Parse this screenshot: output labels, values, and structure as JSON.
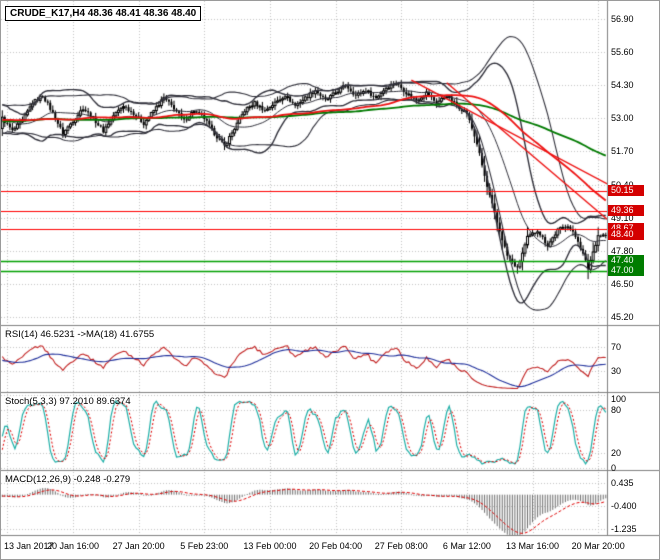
{
  "window": {
    "symbol_label": "CRUDE_K17,H4 48.36 48.41 48.36 48.40"
  },
  "colors": {
    "background": "#ffffff",
    "grid": "#c3c3c3",
    "border": "#808080",
    "candle": "#000000",
    "bollinger": "#32323c",
    "ma_green": "#007a00",
    "ma_red": "#ee1111",
    "trendline_red": "#ee1111",
    "hline_red": "#ff0000",
    "hline_green": "#00a000",
    "badge_red": "#d40000",
    "badge_green": "#007d00",
    "rsi_line": "#c22222",
    "rsi_ma": "#20309c",
    "stoch_k": "#1fb0a8",
    "stoch_d": "#e00000",
    "macd_hist": "#6e6e6e",
    "macd_signal": "#e00000"
  },
  "x_axis": {
    "labels": [
      {
        "i": 2,
        "t": "13 Jan 2017"
      },
      {
        "i": 28,
        "t": "20 Jan 16:00"
      },
      {
        "i": 54,
        "t": "27 Jan 20:00"
      },
      {
        "i": 80,
        "t": "5 Feb 23:00"
      },
      {
        "i": 106,
        "t": "13 Feb 00:00"
      },
      {
        "i": 132,
        "t": "20 Feb 04:00"
      },
      {
        "i": 158,
        "t": "27 Feb 08:00"
      },
      {
        "i": 184,
        "t": "6 Mar 12:00"
      },
      {
        "i": 210,
        "t": "13 Mar 16:00"
      },
      {
        "i": 236,
        "t": "20 Mar 20:00"
      }
    ]
  },
  "chart_data": [
    {
      "type": "candlestick",
      "title": "CRUDE_K17,H4",
      "x_candles": 240,
      "upsample": 4,
      "last_close": 48.4,
      "close_samples": [
        53.0,
        52.5,
        52.9,
        53.6,
        53.9,
        53.2,
        52.4,
        52.9,
        53.4,
        53.0,
        52.5,
        53.1,
        53.5,
        53.2,
        52.8,
        53.3,
        53.8,
        53.4,
        52.9,
        53.3,
        53.0,
        52.4,
        51.9,
        52.6,
        53.3,
        53.6,
        53.3,
        53.6,
        53.9,
        53.5,
        53.8,
        54.1,
        53.7,
        54.0,
        54.3,
        53.9,
        54.1,
        53.8,
        54.2,
        54.4,
        54.0,
        53.7,
        54.0,
        53.6,
        53.9,
        53.5,
        53.2,
        52.0,
        50.3,
        48.9,
        47.6,
        47.1,
        48.3,
        48.6,
        48.0,
        48.6,
        48.8,
        48.2,
        47.1,
        48.4
      ],
      "forced_lows": [
        {
          "i": 88,
          "low": 51.75
        },
        {
          "i": 204,
          "low": 46.9
        },
        {
          "i": 232,
          "low": 46.95
        }
      ],
      "ylim": [
        44.96,
        57.53
      ],
      "y_ticks": [
        56.9,
        55.6,
        54.3,
        53.0,
        51.7,
        50.4,
        49.1,
        47.8,
        46.5,
        45.2
      ],
      "overlays": {
        "bollinger": {
          "period": 20,
          "deviation": 2
        },
        "bollinger2": {
          "period": 34,
          "deviation": 2
        },
        "ma_fast_red": {
          "type": "sma",
          "period": 70
        },
        "ma_slow_green": {
          "type": "sma",
          "period": 120
        },
        "trendlines": [
          {
            "i1": 176,
            "p1": 54.4,
            "i2": 240,
            "p2": 49.0
          },
          {
            "i1": 162,
            "p1": 54.5,
            "i2": 240,
            "p2": 50.4
          }
        ]
      },
      "hlines": {
        "red": [
          50.15,
          49.36,
          48.67
        ],
        "green": [
          47.4,
          47.0
        ]
      },
      "price_badges": {
        "red": [
          50.15,
          49.36,
          48.67,
          48.4
        ],
        "green": [
          47.4,
          47.0
        ]
      }
    },
    {
      "type": "line",
      "name": "RSI",
      "label": "RSI(14) 46.5231 ->MA(18) 41.6755",
      "params": {
        "period": 14,
        "ma": 18
      },
      "values": {
        "rsi": "46.5231",
        "ma": "41.6755"
      },
      "ylim": [
        0,
        100
      ],
      "y_ticks": [
        70,
        30
      ]
    },
    {
      "type": "line",
      "name": "Stochastic",
      "label": "Stoch(5,3,3) 97.2010 89.6374",
      "params": [
        5,
        3,
        3
      ],
      "values": {
        "k": "97.2010",
        "d": "89.6374"
      },
      "ylim": [
        0,
        100
      ],
      "y_ticks": [
        100,
        80,
        20,
        0
      ]
    },
    {
      "type": "histogram",
      "name": "MACD",
      "label": "MACD(12,26,9) -0.248 -0.279",
      "params": [
        12,
        26,
        9
      ],
      "values": {
        "macd": "-0.248",
        "signal": "-0.279"
      },
      "ylim": [
        -1.38,
        0.78
      ],
      "y_ticks": [
        0.435,
        -0.4,
        -1.235
      ]
    }
  ]
}
